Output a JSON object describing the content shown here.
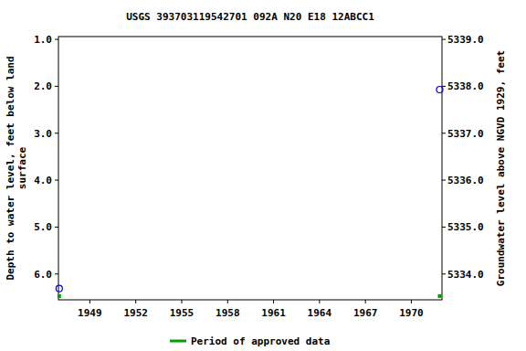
{
  "chart_data": {
    "type": "scatter",
    "title": "USGS 393703119542701 092A N20 E18 12ABCC1",
    "ylabel": "Depth to water level, feet below land\nsurface",
    "y2label": "Groundwater level above NGVD 1929, feet",
    "x": [
      1947.0,
      1971.85
    ],
    "series": [
      {
        "color": "#0000cc",
        "marker": "circle",
        "values": [
          6.31,
          2.07
        ]
      },
      {
        "name": "Period of approved data",
        "color": "#00a000",
        "marker": "square",
        "values": [
          6.47,
          6.47
        ]
      }
    ],
    "xlim": [
      1946.95,
      1972.0
    ],
    "xticks": [
      1949,
      1952,
      1955,
      1958,
      1961,
      1964,
      1967,
      1970
    ],
    "ylim": [
      0.94,
      6.55
    ],
    "yticks": [
      {
        "value": 1,
        "label": "1.0"
      },
      {
        "value": 2,
        "label": "2.0"
      },
      {
        "value": 3,
        "label": "3.0"
      },
      {
        "value": 4,
        "label": "4.0"
      },
      {
        "value": 5,
        "label": "5.0"
      },
      {
        "value": 6,
        "label": "6.0"
      }
    ],
    "y2lim": [
      5339.06,
      5333.45
    ],
    "y2ticks": [
      {
        "value": 5339,
        "label": "5339.0"
      },
      {
        "value": 5338,
        "label": "5338.0"
      },
      {
        "value": 5337,
        "label": "5337.0"
      },
      {
        "value": 5336,
        "label": "5336.0"
      },
      {
        "value": 5335,
        "label": "5335.0"
      },
      {
        "value": 5334,
        "label": "5334.0"
      }
    ],
    "grid": false,
    "legend": "bottom"
  }
}
